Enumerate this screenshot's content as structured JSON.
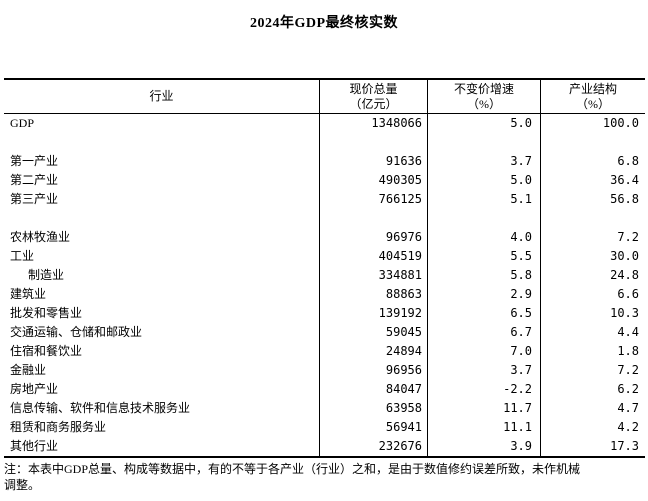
{
  "title": "2024年GDP最终核实数",
  "table": {
    "headers": {
      "industry": "行业",
      "current_price_total_line1": "现价总量",
      "current_price_total_line2": "（亿元）",
      "constant_price_growth_line1": "不变价增速",
      "constant_price_growth_line2": "（%）",
      "industrial_structure_line1": "产业结构",
      "industrial_structure_line2": "（%）"
    },
    "rows": [
      {
        "industry": "GDP",
        "current_price_total": "1348066",
        "constant_price_growth": "5.0",
        "industrial_structure": "100.0"
      },
      {
        "blank": true
      },
      {
        "industry": "第一产业",
        "current_price_total": "91636",
        "constant_price_growth": "3.7",
        "industrial_structure": "6.8"
      },
      {
        "industry": "第二产业",
        "current_price_total": "490305",
        "constant_price_growth": "5.0",
        "industrial_structure": "36.4"
      },
      {
        "industry": "第三产业",
        "current_price_total": "766125",
        "constant_price_growth": "5.1",
        "industrial_structure": "56.8"
      },
      {
        "blank": true
      },
      {
        "industry": "农林牧渔业",
        "current_price_total": "96976",
        "constant_price_growth": "4.0",
        "industrial_structure": "7.2"
      },
      {
        "industry": "工业",
        "current_price_total": "404519",
        "constant_price_growth": "5.5",
        "industrial_structure": "30.0"
      },
      {
        "industry": "制造业",
        "indent": true,
        "current_price_total": "334881",
        "constant_price_growth": "5.8",
        "industrial_structure": "24.8"
      },
      {
        "industry": "建筑业",
        "current_price_total": "88863",
        "constant_price_growth": "2.9",
        "industrial_structure": "6.6"
      },
      {
        "industry": "批发和零售业",
        "current_price_total": "139192",
        "constant_price_growth": "6.5",
        "industrial_structure": "10.3"
      },
      {
        "industry": "交通运输、仓储和邮政业",
        "current_price_total": "59045",
        "constant_price_growth": "6.7",
        "industrial_structure": "4.4"
      },
      {
        "industry": "住宿和餐饮业",
        "current_price_total": "24894",
        "constant_price_growth": "7.0",
        "industrial_structure": "1.8"
      },
      {
        "industry": "金融业",
        "current_price_total": "96956",
        "constant_price_growth": "3.7",
        "industrial_structure": "7.2"
      },
      {
        "industry": "房地产业",
        "current_price_total": "84047",
        "constant_price_growth": "-2.2",
        "industrial_structure": "6.2"
      },
      {
        "industry": "信息传输、软件和信息技术服务业",
        "current_price_total": "63958",
        "constant_price_growth": "11.7",
        "industrial_structure": "4.7"
      },
      {
        "industry": "租赁和商务服务业",
        "current_price_total": "56941",
        "constant_price_growth": "11.1",
        "industrial_structure": "4.2"
      },
      {
        "industry": "其他行业",
        "current_price_total": "232676",
        "constant_price_growth": "3.9",
        "industrial_structure": "17.3"
      }
    ]
  },
  "note": {
    "line1": "注：本表中GDP总量、构成等数据中，有的不等于各产业（行业）之和，是由于数值修约误差所致，未作机械",
    "line2": "调整。"
  }
}
